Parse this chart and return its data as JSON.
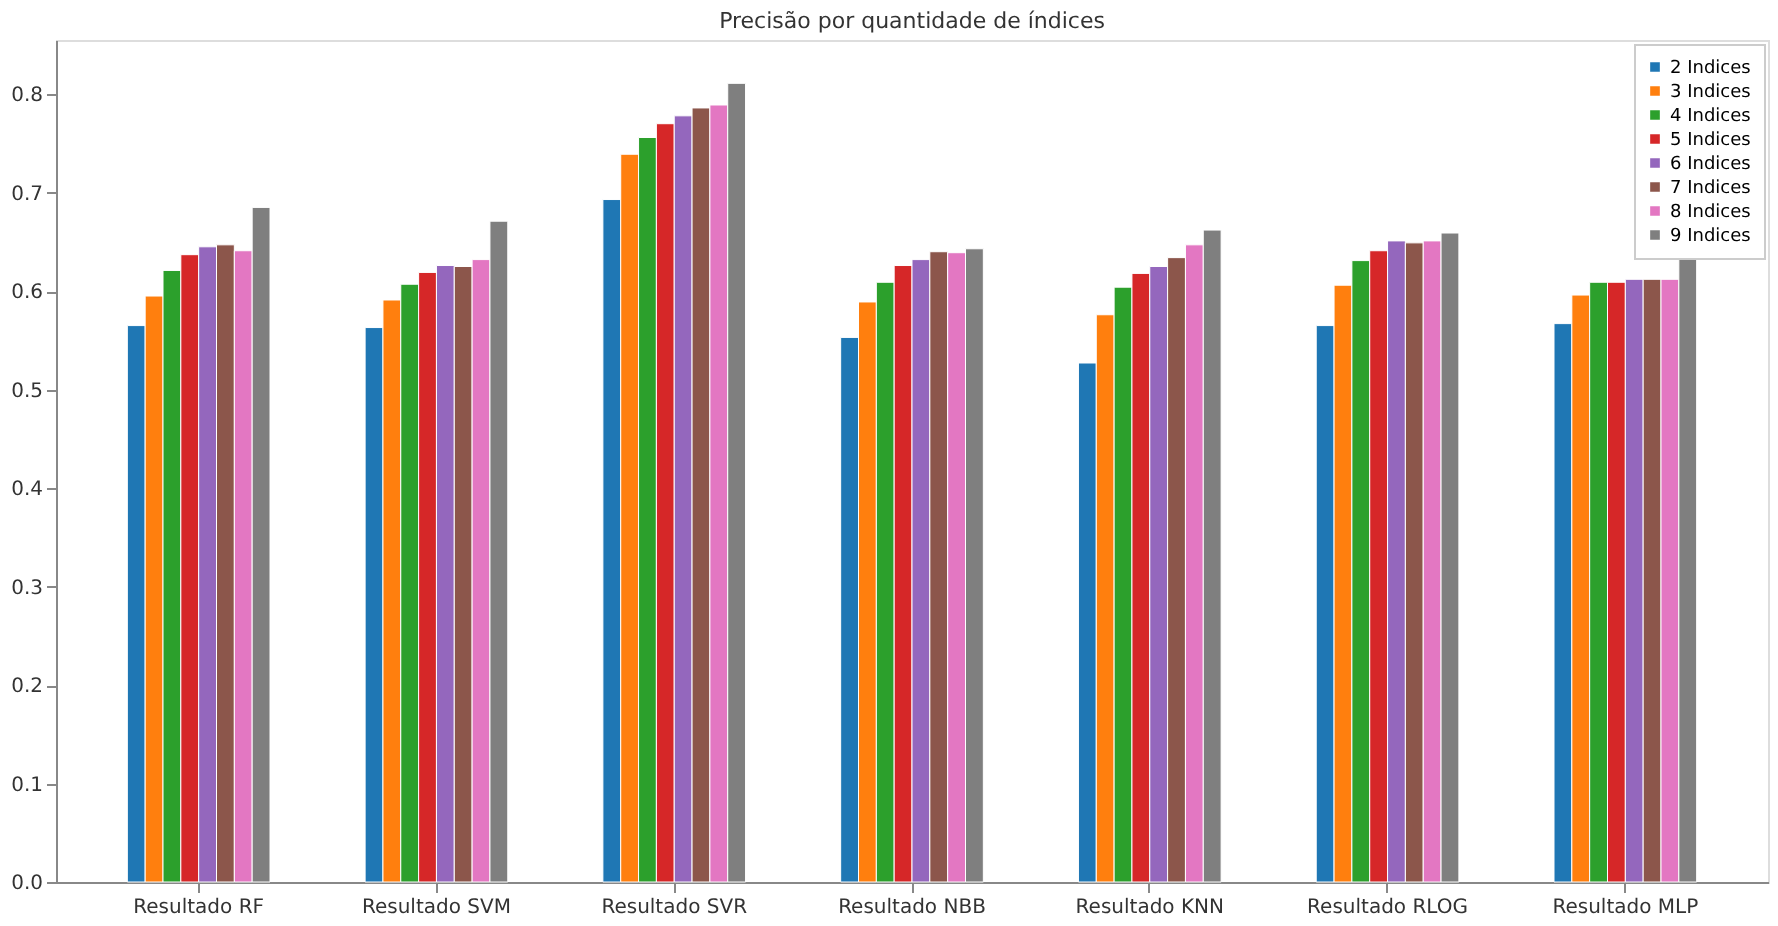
{
  "chart_data": {
    "type": "bar",
    "title": "Precisão por quantidade de índices",
    "categories": [
      "Resultado RF",
      "Resultado SVM",
      "Resultado SVR",
      "Resultado NBB",
      "Resultado KNN",
      "Resultado RLOG",
      "Resultado MLP"
    ],
    "series": [
      {
        "name": "2 Indices",
        "color": "#1f77b4",
        "values": [
          0.565,
          0.563,
          0.693,
          0.553,
          0.527,
          0.565,
          0.567
        ]
      },
      {
        "name": "3 Indices",
        "color": "#ff7f0e",
        "values": [
          0.595,
          0.591,
          0.739,
          0.589,
          0.576,
          0.606,
          0.596
        ]
      },
      {
        "name": "4 Indices",
        "color": "#2ca02c",
        "values": [
          0.621,
          0.607,
          0.756,
          0.609,
          0.604,
          0.631,
          0.609
        ]
      },
      {
        "name": "5 Indices",
        "color": "#d62728",
        "values": [
          0.637,
          0.619,
          0.77,
          0.626,
          0.618,
          0.641,
          0.609
        ]
      },
      {
        "name": "6 Indices",
        "color": "#9467bd",
        "values": [
          0.645,
          0.626,
          0.778,
          0.632,
          0.625,
          0.651,
          0.612
        ]
      },
      {
        "name": "7 Indices",
        "color": "#8c564b",
        "values": [
          0.647,
          0.625,
          0.786,
          0.64,
          0.634,
          0.649,
          0.612
        ]
      },
      {
        "name": "8 Indices",
        "color": "#e377c2",
        "values": [
          0.641,
          0.632,
          0.789,
          0.639,
          0.647,
          0.651,
          0.612
        ]
      },
      {
        "name": "9 Indices",
        "color": "#7f7f7f",
        "values": [
          0.685,
          0.671,
          0.811,
          0.643,
          0.662,
          0.659,
          0.637
        ]
      }
    ],
    "ylim": [
      0,
      0.855
    ],
    "yticks": [
      {
        "value": 0,
        "label": "0.0"
      },
      0.1,
      0.2,
      0.3,
      0.4,
      0.5,
      0.6,
      0.7,
      0.8
    ],
    "grid": false,
    "legend": "top right"
  }
}
